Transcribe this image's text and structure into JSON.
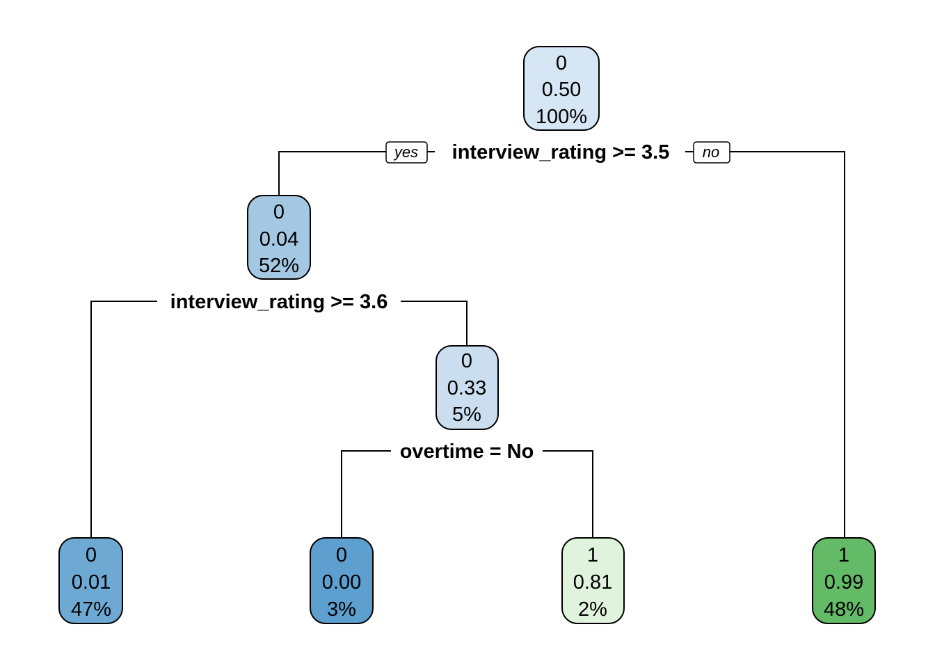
{
  "tree": {
    "nodes": [
      {
        "id": "root",
        "class_label": "0",
        "prob": "0.50",
        "pct": "100%",
        "fill": "#d7e6f5"
      },
      {
        "id": "n2",
        "class_label": "0",
        "prob": "0.04",
        "pct": "52%",
        "fill": "#a4c8e2"
      },
      {
        "id": "n5",
        "class_label": "0",
        "prob": "0.33",
        "pct": "5%",
        "fill": "#cadeef"
      },
      {
        "id": "leaf4",
        "class_label": "0",
        "prob": "0.01",
        "pct": "47%",
        "fill": "#6ea9d4"
      },
      {
        "id": "leaf10",
        "class_label": "0",
        "prob": "0.00",
        "pct": "3%",
        "fill": "#5d9fcf"
      },
      {
        "id": "leaf11",
        "class_label": "1",
        "prob": "0.81",
        "pct": "2%",
        "fill": "#e0f3dc"
      },
      {
        "id": "leaf3",
        "class_label": "1",
        "prob": "0.99",
        "pct": "48%",
        "fill": "#63ba67"
      }
    ],
    "splits": [
      {
        "id": "s1",
        "text": "interview_rating >= 3.5"
      },
      {
        "id": "s2",
        "text": "interview_rating >= 3.6"
      },
      {
        "id": "s3",
        "text": "overtime = No"
      }
    ],
    "yes_label": "yes",
    "no_label": "no"
  }
}
